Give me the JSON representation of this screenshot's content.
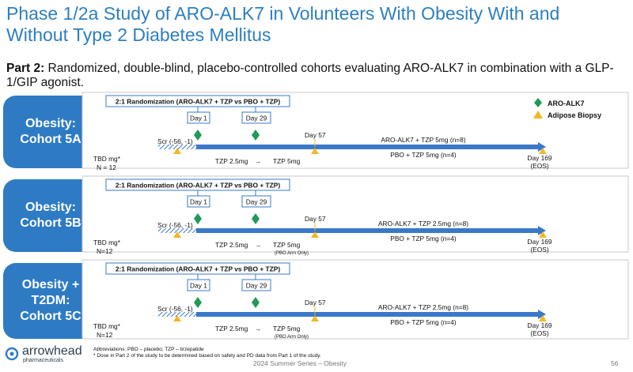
{
  "title": "Phase 1/2a Study of ARO-ALK7 in Volunteers With Obesity With and Without Type 2 Diabetes Mellitus",
  "subtitle": {
    "lead": "Part 2:",
    "text": " Randomized, double-blind, placebo-controlled cohorts evaluating ARO-ALK7 in combination with a GLP-1/GIP agonist."
  },
  "legend": {
    "drug": "ARO-ALK7",
    "biopsy": "Adipose Biopsy",
    "drug_color": "#1f9a57",
    "biopsy_color": "#f2b824"
  },
  "cohorts": [
    {
      "label_line1": "Obesity:",
      "label_line2": "Cohort 5A",
      "label_line3": "",
      "randomization": "2:1 Randomization (ARO-ALK7 + TZP  vs PBO + TZP)",
      "day1": "Day 1",
      "day29": "Day 29",
      "day57": "Day 57",
      "scr": "Scr (-56, -1)",
      "tbd": "TBD mg*",
      "n": "N = 12",
      "tzp_from": "TZP 2.5mg",
      "arrow": "→",
      "tzp_to": "TZP 5mg",
      "pbo_note": "",
      "arm_active": "ARO-ALK7 + TZP 5mg (n=8)",
      "arm_pbo": "PBO + TZP 5mg (n=4)",
      "end_day": "Day 169",
      "end_eos": "(EOS)"
    },
    {
      "label_line1": "Obesity:",
      "label_line2": "Cohort 5B",
      "label_line3": "",
      "randomization": "2:1 Randomization (ARO-ALK7 + TZP  vs PBO + TZP)",
      "day1": "Day 1",
      "day29": "Day 29",
      "day57": "Day 57",
      "scr": "Scr (-56, -1)",
      "tbd": "TBD mg*",
      "n": "N=12",
      "tzp_from": "TZP 2.5mg",
      "arrow": "→",
      "tzp_to": "TZP 5mg",
      "pbo_note": "(PBO Arm Only)",
      "arm_active": "ARO-ALK7 + TZP 2.5mg (n=8)",
      "arm_pbo": "PBO + TZP 5mg (n=4)",
      "end_day": "Day 169",
      "end_eos": "(EOS)"
    },
    {
      "label_line1": "Obesity +",
      "label_line2": "T2DM:",
      "label_line3": "Cohort 5C",
      "randomization": "2:1 Randomization (ARO-ALK7 + TZP  vs PBO + TZP)",
      "day1": "Day 1",
      "day29": "Day 29",
      "day57": "Day 57",
      "scr": "Scr (-56, -1)",
      "tbd": "TBD mg*",
      "n": "N=12",
      "tzp_from": "TZP 2.5mg",
      "arrow": "→",
      "tzp_to": "TZP 5mg",
      "pbo_note": "(PBO Arm Only)",
      "arm_active": "ARO-ALK7 + TZP 2.5mg (n=8)",
      "arm_pbo": "PBO + TZP 5mg (n=4)",
      "end_day": "Day 169",
      "end_eos": "(EOS)"
    }
  ],
  "footer": {
    "logo_name": "arrowhead",
    "logo_sub": "pharmaceuticals",
    "abbrev": "Abbreviations: PBO – placebo; TZP – tirzepatide",
    "dose_note": "* Dose in Part 2 of the study to be determined based on safety and PD data from Part 1 of the study.",
    "center": "2024 Summer Series – Obesity",
    "page": "56"
  },
  "colors": {
    "title": "#2e7fbf",
    "cohort_box": "#2e7bc4",
    "timeline": "#3a78c9"
  }
}
